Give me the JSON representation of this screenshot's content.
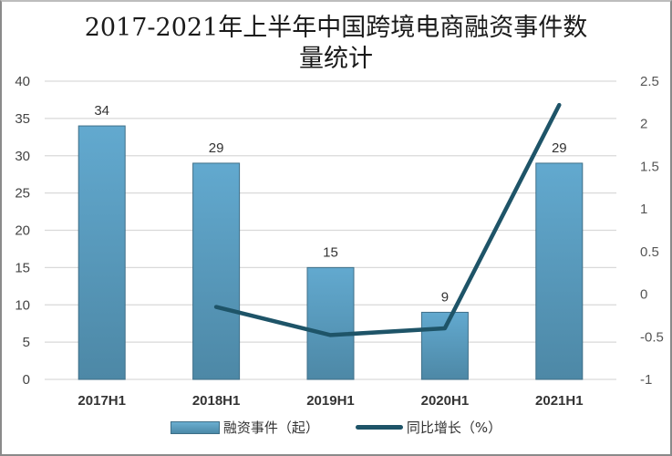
{
  "chart_data": {
    "type": "bar+line",
    "title": "2017-2021年上半年中国跨境电商融资事件数量统计",
    "title_lines": [
      "2017-2021年上半年中国跨境电商融资事件数",
      "量统计"
    ],
    "categories": [
      "2017H1",
      "2018H1",
      "2019H1",
      "2020H1",
      "2021H1"
    ],
    "series": [
      {
        "name": "融资事件（起）",
        "type": "bar",
        "axis": "left",
        "values": [
          34,
          29,
          15,
          9,
          29
        ],
        "data_labels": [
          "34",
          "29",
          "15",
          "9",
          "29"
        ],
        "color": "#5a9dc0"
      },
      {
        "name": "同比增长（%）",
        "type": "line",
        "axis": "right",
        "values": [
          null,
          -0.15,
          -0.48,
          -0.4,
          2.22
        ],
        "color": "#1e5468"
      }
    ],
    "y_left": {
      "ticks": [
        "0",
        "5",
        "10",
        "15",
        "20",
        "25",
        "30",
        "35",
        "40"
      ],
      "ylim": [
        0,
        40
      ]
    },
    "y_right": {
      "ticks": [
        "-1",
        "-0.5",
        "0",
        "0.5",
        "1",
        "1.5",
        "2",
        "2.5"
      ],
      "ylim": [
        -1,
        2.5
      ]
    },
    "xlabel": "",
    "ylabel": "",
    "grid": true,
    "legend_position": "bottom"
  },
  "legend": {
    "bar_label": "融资事件（起）",
    "line_label": "同比增长（%）"
  }
}
